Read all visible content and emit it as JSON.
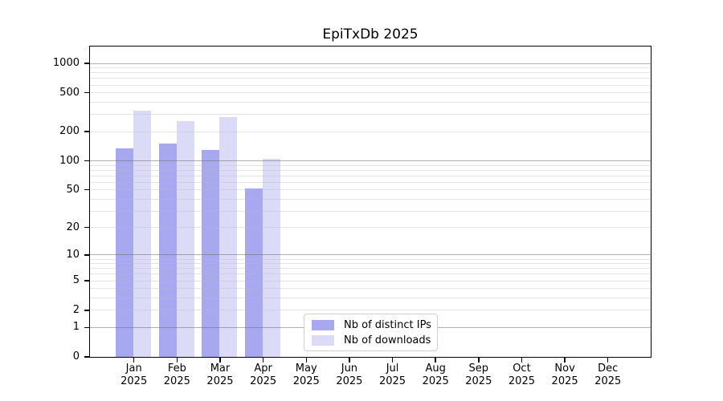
{
  "title": "EpiTxDb 2025",
  "legend": {
    "items": [
      {
        "label": "Nb of distinct IPs",
        "color": "#a8a8f0"
      },
      {
        "label": "Nb of downloads",
        "color": "#dbdbf8"
      }
    ]
  },
  "chart_data": {
    "type": "bar",
    "title": "EpiTxDb 2025",
    "categories": [
      "Jan 2025",
      "Feb 2025",
      "Mar 2025",
      "Apr 2025",
      "May 2025",
      "Jun 2025",
      "Jul 2025",
      "Aug 2025",
      "Sep 2025",
      "Oct 2025",
      "Nov 2025",
      "Dec 2025"
    ],
    "series": [
      {
        "name": "Nb of distinct IPs",
        "color": "#a8a8f0",
        "values": [
          133,
          150,
          128,
          51,
          0,
          0,
          0,
          0,
          0,
          0,
          0,
          0
        ]
      },
      {
        "name": "Nb of downloads",
        "color": "#dbdbf8",
        "values": [
          326,
          253,
          277,
          103,
          0,
          0,
          0,
          0,
          0,
          0,
          0,
          0
        ]
      }
    ],
    "xlabel": "",
    "ylabel": "",
    "y_scale": "log10(1+x)",
    "ylim": [
      0,
      1487
    ],
    "yticks": [
      0,
      1,
      2,
      5,
      10,
      20,
      50,
      100,
      200,
      500,
      1000
    ],
    "grid": {
      "on": true,
      "major_values": [
        1,
        10,
        100,
        1000
      ],
      "minor_multiples": [
        2,
        3,
        4,
        5,
        6,
        7,
        8,
        9
      ],
      "minor_decades": [
        1,
        10,
        100
      ],
      "drawn_above_bars": true
    },
    "legend_position": "lower center",
    "axis_color": "#000000",
    "major_grid_color": "#6e6e6e",
    "minor_grid_color": "#b9b9b9"
  }
}
